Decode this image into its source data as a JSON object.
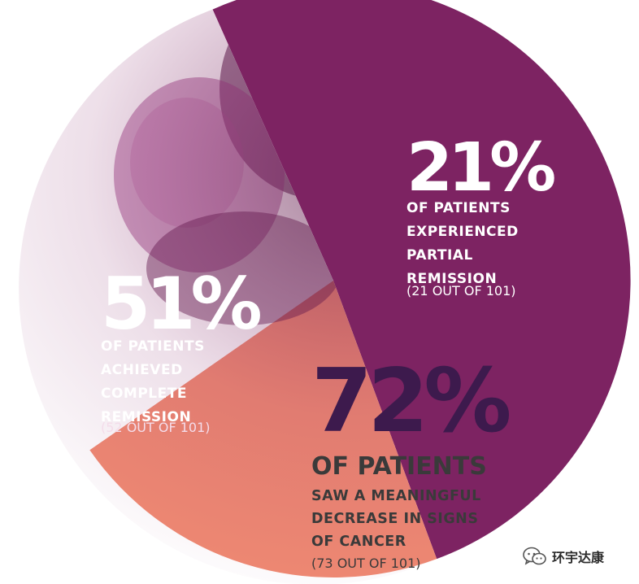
{
  "chart_data": {
    "type": "pie",
    "slices": [
      {
        "value": 51,
        "value_label": "51%",
        "label": "OF PATIENTS ACHIEVED COMPLETE REMISSION",
        "count": "(52 OUT OF 101)",
        "color": "#7d2362"
      },
      {
        "value": 21,
        "value_label": "21%",
        "label": "OF PATIENTS EXPERIENCED PARTIAL REMISSION",
        "count": "(21 OUT OF 101)",
        "color": "#f08a72"
      },
      {
        "value": 28,
        "value_label": "",
        "label": "",
        "count": "",
        "color": "#ffffff"
      }
    ],
    "summary": {
      "value": 72,
      "value_label": "72%",
      "headline": "OF PATIENTS",
      "label": "SAW A MEANINGFUL DECREASE IN SIGNS OF CANCER",
      "count": "(73 OUT OF 101)",
      "color": "#3d1a4d"
    }
  },
  "texts": {
    "complete_desc": "OF PATIENTS\nACHIEVED\nCOMPLETE\nREMISSION",
    "partial_desc": "OF PATIENTS\nEXPERIENCED\nPARTIAL\nREMISSION",
    "overall_desc": "SAW A MEANINGFUL\nDECREASE IN SIGNS\nOF CANCER"
  },
  "watermark": {
    "text": "环宇达康",
    "icon": "wechat-icon"
  }
}
